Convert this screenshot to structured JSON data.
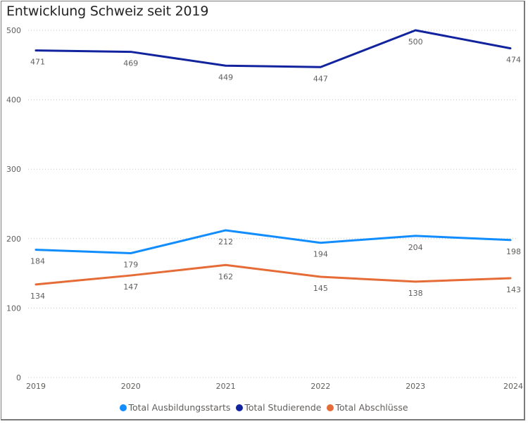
{
  "chart_data": {
    "type": "line",
    "title": "Entwicklung Schweiz seit 2019",
    "xlabel": "",
    "ylabel": "",
    "categories": [
      "2019",
      "2020",
      "2021",
      "2022",
      "2023",
      "2024"
    ],
    "ylim": [
      0,
      500
    ],
    "yticks": [
      "0",
      "100",
      "200",
      "300",
      "400",
      "500"
    ],
    "grid": true,
    "legend_position": "bottom-center",
    "series": [
      {
        "name": "Total Ausbildungsstarts",
        "color": "#118dff",
        "values": [
          184,
          179,
          212,
          194,
          204,
          198
        ],
        "label_pos": [
          "below",
          "below",
          "below",
          "below",
          "below",
          "below"
        ]
      },
      {
        "name": "Total Studierende",
        "color": "#12239e",
        "values": [
          471,
          469,
          449,
          447,
          500,
          474
        ],
        "label_pos": [
          "below",
          "below",
          "below",
          "below",
          "below",
          "below"
        ]
      },
      {
        "name": "Total Abschlüsse",
        "color": "#e66c37",
        "values": [
          134,
          147,
          162,
          145,
          138,
          143
        ],
        "label_pos": [
          "below",
          "below",
          "below",
          "below",
          "below",
          "below"
        ]
      }
    ]
  }
}
